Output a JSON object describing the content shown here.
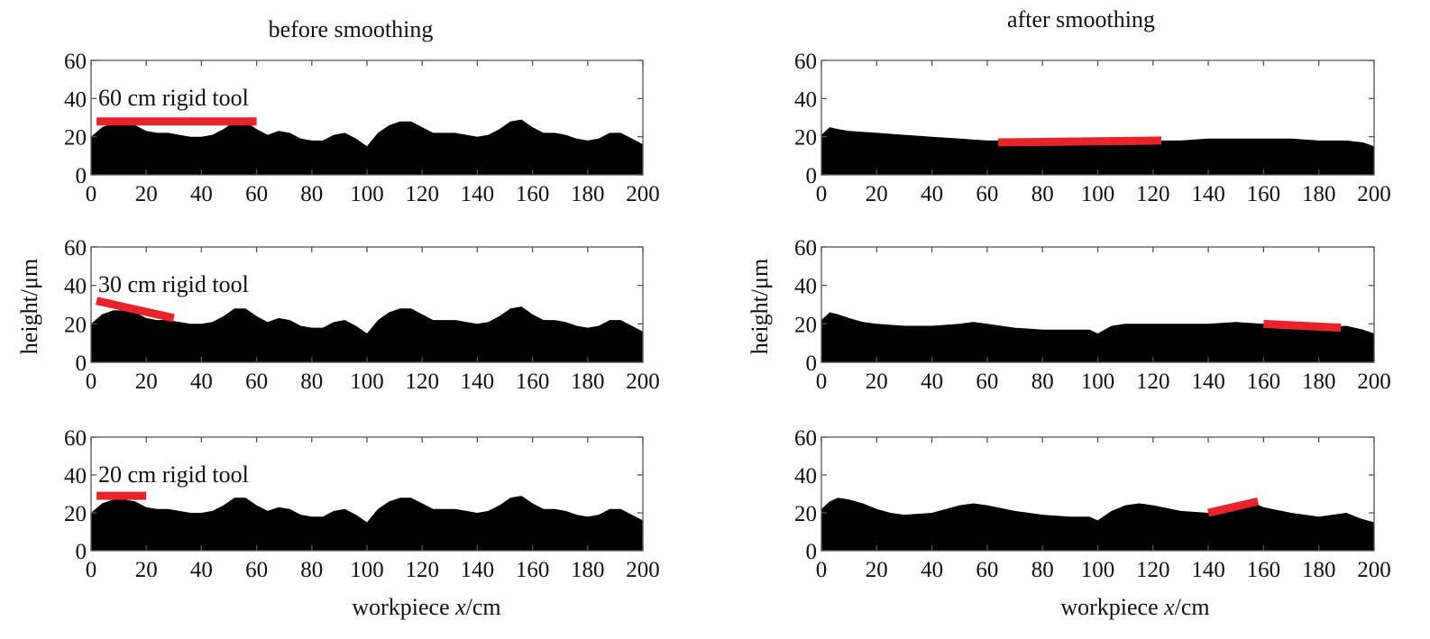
{
  "figure": {
    "col_titles": [
      "before smoothing",
      "after smoothing"
    ],
    "ylabel": "height/μm",
    "xlabel_prefix": "workpiece ",
    "xlabel_var": "x",
    "xlabel_unit": "/cm"
  },
  "chart_data": [
    {
      "type": "area",
      "column": "before smoothing",
      "tool_label": "60 cm rigid tool",
      "xlim": [
        0,
        200
      ],
      "ylim": [
        0,
        60
      ],
      "xticks": [
        0,
        20,
        40,
        60,
        80,
        100,
        120,
        140,
        160,
        180,
        200
      ],
      "yticks": [
        0,
        20,
        40,
        60
      ],
      "surface": {
        "x": [
          0,
          4,
          8,
          12,
          16,
          20,
          24,
          28,
          32,
          36,
          40,
          44,
          48,
          52,
          56,
          60,
          64,
          68,
          72,
          76,
          80,
          84,
          88,
          92,
          96,
          100,
          104,
          108,
          112,
          116,
          120,
          124,
          128,
          132,
          136,
          140,
          144,
          148,
          152,
          156,
          160,
          164,
          168,
          172,
          176,
          180,
          184,
          188,
          192,
          196,
          200
        ],
        "y": [
          20,
          25,
          27,
          27,
          26,
          23,
          22,
          22,
          21,
          20,
          20,
          21,
          24,
          28,
          28,
          24,
          21,
          23,
          22,
          19,
          18,
          18,
          21,
          22,
          19,
          15,
          22,
          26,
          28,
          28,
          25,
          22,
          22,
          22,
          21,
          20,
          21,
          24,
          28,
          29,
          25,
          22,
          22,
          21,
          19,
          18,
          19,
          22,
          22,
          19,
          16
        ]
      },
      "tool": {
        "x": [
          2,
          60
        ],
        "y": [
          28,
          28
        ]
      },
      "tool_color": "#e8232a"
    },
    {
      "type": "area",
      "column": "before smoothing",
      "tool_label": "30 cm rigid tool",
      "xlim": [
        0,
        200
      ],
      "ylim": [
        0,
        60
      ],
      "xticks": [
        0,
        20,
        40,
        60,
        80,
        100,
        120,
        140,
        160,
        180,
        200
      ],
      "yticks": [
        0,
        20,
        40,
        60
      ],
      "surface": {
        "x": [
          0,
          4,
          8,
          12,
          16,
          20,
          24,
          28,
          32,
          36,
          40,
          44,
          48,
          52,
          56,
          60,
          64,
          68,
          72,
          76,
          80,
          84,
          88,
          92,
          96,
          100,
          104,
          108,
          112,
          116,
          120,
          124,
          128,
          132,
          136,
          140,
          144,
          148,
          152,
          156,
          160,
          164,
          168,
          172,
          176,
          180,
          184,
          188,
          192,
          196,
          200
        ],
        "y": [
          20,
          25,
          27,
          27,
          26,
          23,
          22,
          22,
          21,
          20,
          20,
          21,
          24,
          28,
          28,
          24,
          21,
          23,
          22,
          19,
          18,
          18,
          21,
          22,
          19,
          15,
          22,
          26,
          28,
          28,
          25,
          22,
          22,
          22,
          21,
          20,
          21,
          24,
          28,
          29,
          25,
          22,
          22,
          21,
          19,
          18,
          19,
          22,
          22,
          19,
          16
        ]
      },
      "tool": {
        "x": [
          2,
          30
        ],
        "y": [
          32,
          23
        ]
      },
      "tool_color": "#e8232a"
    },
    {
      "type": "area",
      "column": "before smoothing",
      "tool_label": "20 cm rigid tool",
      "xlim": [
        0,
        200
      ],
      "ylim": [
        0,
        60
      ],
      "xticks": [
        0,
        20,
        40,
        60,
        80,
        100,
        120,
        140,
        160,
        180,
        200
      ],
      "yticks": [
        0,
        20,
        40,
        60
      ],
      "surface": {
        "x": [
          0,
          4,
          8,
          12,
          16,
          20,
          24,
          28,
          32,
          36,
          40,
          44,
          48,
          52,
          56,
          60,
          64,
          68,
          72,
          76,
          80,
          84,
          88,
          92,
          96,
          100,
          104,
          108,
          112,
          116,
          120,
          124,
          128,
          132,
          136,
          140,
          144,
          148,
          152,
          156,
          160,
          164,
          168,
          172,
          176,
          180,
          184,
          188,
          192,
          196,
          200
        ],
        "y": [
          20,
          25,
          27,
          27,
          26,
          23,
          22,
          22,
          21,
          20,
          20,
          21,
          24,
          28,
          28,
          24,
          21,
          23,
          22,
          19,
          18,
          18,
          21,
          22,
          19,
          15,
          22,
          26,
          28,
          28,
          25,
          22,
          22,
          22,
          21,
          20,
          21,
          24,
          28,
          29,
          25,
          22,
          22,
          21,
          19,
          18,
          19,
          22,
          22,
          19,
          16
        ]
      },
      "tool": {
        "x": [
          2,
          20
        ],
        "y": [
          29,
          29
        ]
      },
      "tool_color": "#e8232a"
    },
    {
      "type": "area",
      "column": "after smoothing",
      "tool_label": "",
      "xlim": [
        0,
        200
      ],
      "ylim": [
        0,
        60
      ],
      "xticks": [
        0,
        20,
        40,
        60,
        80,
        100,
        120,
        140,
        160,
        180,
        200
      ],
      "yticks": [
        0,
        20,
        40,
        60
      ],
      "surface": {
        "x": [
          0,
          3,
          6,
          10,
          20,
          30,
          40,
          50,
          60,
          70,
          80,
          90,
          100,
          110,
          120,
          130,
          140,
          150,
          160,
          170,
          180,
          190,
          196,
          200
        ],
        "y": [
          21,
          25,
          24,
          23,
          22,
          21,
          20,
          19,
          18,
          18,
          18,
          18,
          18,
          18,
          18,
          18,
          19,
          19,
          19,
          19,
          18,
          18,
          17,
          15
        ]
      },
      "tool": {
        "x": [
          64,
          123
        ],
        "y": [
          17,
          18
        ]
      },
      "tool_color": "#e8232a"
    },
    {
      "type": "area",
      "column": "after smoothing",
      "tool_label": "",
      "xlim": [
        0,
        200
      ],
      "ylim": [
        0,
        60
      ],
      "xticks": [
        0,
        20,
        40,
        60,
        80,
        100,
        120,
        140,
        160,
        180,
        200
      ],
      "yticks": [
        0,
        20,
        40,
        60
      ],
      "surface": {
        "x": [
          0,
          3,
          6,
          10,
          15,
          20,
          30,
          40,
          50,
          55,
          60,
          70,
          80,
          90,
          97,
          100,
          105,
          110,
          120,
          130,
          140,
          150,
          160,
          170,
          180,
          190,
          196,
          200
        ],
        "y": [
          22,
          26,
          25,
          23,
          21,
          20,
          19,
          19,
          20,
          21,
          20,
          18,
          17,
          17,
          17,
          15,
          19,
          20,
          20,
          20,
          20,
          21,
          20,
          19,
          18,
          19,
          17,
          15
        ]
      },
      "tool": {
        "x": [
          160,
          188
        ],
        "y": [
          20,
          18
        ]
      },
      "tool_color": "#e8232a"
    },
    {
      "type": "area",
      "column": "after smoothing",
      "tool_label": "",
      "xlim": [
        0,
        200
      ],
      "ylim": [
        0,
        60
      ],
      "xticks": [
        0,
        20,
        40,
        60,
        80,
        100,
        120,
        140,
        160,
        180,
        200
      ],
      "yticks": [
        0,
        20,
        40,
        60
      ],
      "surface": {
        "x": [
          0,
          3,
          6,
          10,
          15,
          20,
          25,
          30,
          40,
          50,
          55,
          60,
          70,
          80,
          90,
          97,
          100,
          105,
          110,
          115,
          120,
          130,
          140,
          150,
          155,
          160,
          170,
          180,
          185,
          190,
          195,
          200
        ],
        "y": [
          22,
          26,
          28,
          27,
          25,
          22,
          20,
          19,
          20,
          24,
          25,
          24,
          21,
          19,
          18,
          18,
          16,
          21,
          24,
          25,
          24,
          21,
          20,
          24,
          26,
          23,
          20,
          18,
          19,
          20,
          17,
          15
        ]
      },
      "tool": {
        "x": [
          140,
          158
        ],
        "y": [
          20,
          26
        ]
      },
      "tool_color": "#e8232a"
    }
  ]
}
